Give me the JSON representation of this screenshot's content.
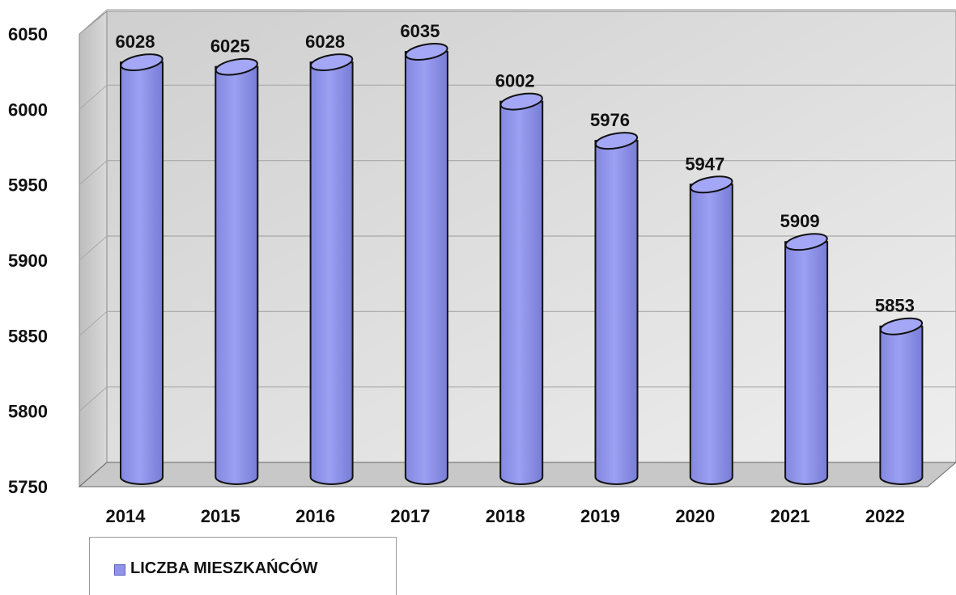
{
  "chart_data": {
    "type": "bar",
    "style": "3d-cylinder",
    "categories": [
      "2014",
      "2015",
      "2016",
      "2017",
      "2018",
      "2019",
      "2020",
      "2021",
      "2022"
    ],
    "series": [
      {
        "name": "LICZBA MIESZKAŃCÓW",
        "values": [
          6028,
          6025,
          6028,
          6035,
          6002,
          5976,
          5947,
          5909,
          5853
        ]
      }
    ],
    "data_labels": [
      "6028",
      "6025",
      "6028",
      "6035",
      "6002",
      "5976",
      "5947",
      "5909",
      "5853"
    ],
    "y_ticks": [
      "5750",
      "5800",
      "5850",
      "5900",
      "5950",
      "6000",
      "6050"
    ],
    "ylim": [
      5750,
      6050
    ],
    "grid": true,
    "legend_position": "bottom-left",
    "colors": {
      "bar": "#8f93ea",
      "bar_outline": "#111111",
      "wall": "#dcdcdc",
      "grid": "#a8a8a8"
    }
  }
}
